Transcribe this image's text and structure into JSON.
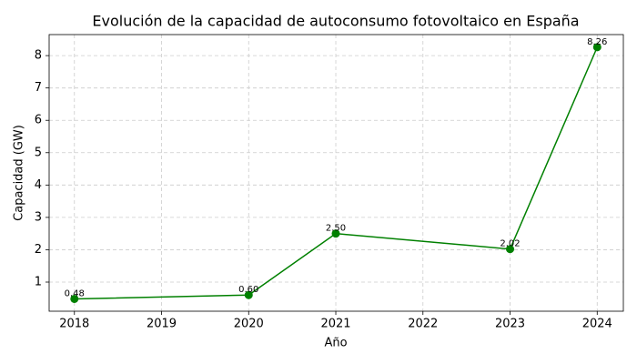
{
  "chart_data": {
    "type": "line",
    "title": "Evolución de la capacidad de autoconsumo fotovoltaico en España",
    "x_label": "Año",
    "y_label": "Capacidad (GW)",
    "x": [
      2018,
      2020,
      2021,
      2023,
      2024
    ],
    "values": [
      0.48,
      0.6,
      2.5,
      2.02,
      8.26
    ],
    "value_labels": [
      "0.48",
      "0.60",
      "2.50",
      "2.02",
      "8.26"
    ],
    "color": "#008000",
    "xlim": [
      2017.71,
      2024.3
    ],
    "xticks": [
      2018,
      2019,
      2020,
      2021,
      2022,
      2023,
      2024
    ],
    "ylim": [
      0.1,
      8.65
    ],
    "yticks": [
      1,
      2,
      3,
      4,
      5,
      6,
      7,
      8
    ],
    "grid": true
  }
}
